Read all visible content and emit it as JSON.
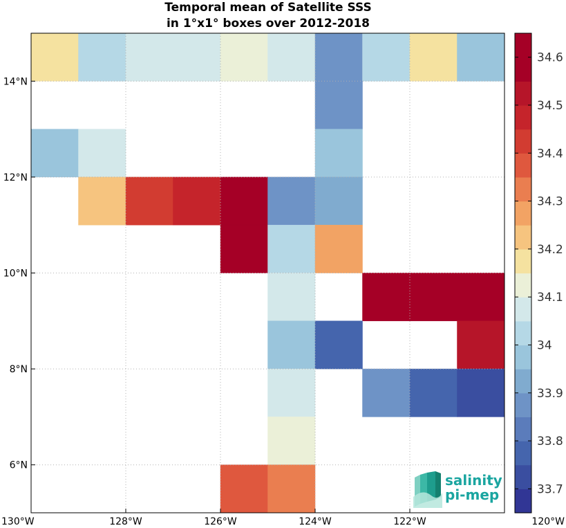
{
  "chart_data": {
    "type": "heatmap",
    "title_line1": "Temporal mean of Satellite SSS",
    "title_line2": "in 1°x1° boxes over 2012-2018",
    "xlim": [
      -130,
      -120
    ],
    "ylim": [
      5,
      15
    ],
    "x_ticks": [
      {
        "value": -130,
        "label": "130°W"
      },
      {
        "value": -128,
        "label": "128°W"
      },
      {
        "value": -126,
        "label": "126°W"
      },
      {
        "value": -124,
        "label": "124°W"
      },
      {
        "value": -122,
        "label": "122°W"
      },
      {
        "value": -120,
        "label": "120°W"
      }
    ],
    "y_ticks": [
      {
        "value": 6,
        "label": "6°N"
      },
      {
        "value": 8,
        "label": "8°N"
      },
      {
        "value": 10,
        "label": "10°N"
      },
      {
        "value": 12,
        "label": "12°N"
      },
      {
        "value": 14,
        "label": "14°N"
      }
    ],
    "grid": true,
    "cells": [
      {
        "lon": -130,
        "lat": 14,
        "sss": 34.17
      },
      {
        "lon": -129,
        "lat": 14,
        "sss": 34.0
      },
      {
        "lon": -128,
        "lat": 14,
        "sss": 34.07
      },
      {
        "lon": -127,
        "lat": 14,
        "sss": 34.07
      },
      {
        "lon": -126,
        "lat": 14,
        "sss": 34.12
      },
      {
        "lon": -125,
        "lat": 14,
        "sss": 34.07
      },
      {
        "lon": -124,
        "lat": 14,
        "sss": 33.87
      },
      {
        "lon": -123,
        "lat": 14,
        "sss": 34.02
      },
      {
        "lon": -122,
        "lat": 14,
        "sss": 34.17
      },
      {
        "lon": -121,
        "lat": 14,
        "sss": 33.97
      },
      {
        "lon": -124,
        "lat": 13,
        "sss": 33.87
      },
      {
        "lon": -130,
        "lat": 12,
        "sss": 33.97
      },
      {
        "lon": -129,
        "lat": 12,
        "sss": 34.07
      },
      {
        "lon": -124,
        "lat": 12,
        "sss": 33.97
      },
      {
        "lon": -129,
        "lat": 11,
        "sss": 34.22
      },
      {
        "lon": -128,
        "lat": 11,
        "sss": 34.42
      },
      {
        "lon": -127,
        "lat": 11,
        "sss": 34.47
      },
      {
        "lon": -126,
        "lat": 11,
        "sss": 34.62
      },
      {
        "lon": -125,
        "lat": 11,
        "sss": 33.85
      },
      {
        "lon": -124,
        "lat": 11,
        "sss": 33.92
      },
      {
        "lon": -126,
        "lat": 10,
        "sss": 34.62
      },
      {
        "lon": -125,
        "lat": 10,
        "sss": 34.02
      },
      {
        "lon": -124,
        "lat": 10,
        "sss": 34.27
      },
      {
        "lon": -125,
        "lat": 9,
        "sss": 34.07
      },
      {
        "lon": -123,
        "lat": 9,
        "sss": 34.57
      },
      {
        "lon": -122,
        "lat": 9,
        "sss": 34.57
      },
      {
        "lon": -121,
        "lat": 9,
        "sss": 34.57
      },
      {
        "lon": -125,
        "lat": 8,
        "sss": 33.97
      },
      {
        "lon": -124,
        "lat": 8,
        "sss": 33.77
      },
      {
        "lon": -121,
        "lat": 8,
        "sss": 34.52
      },
      {
        "lon": -125,
        "lat": 7,
        "sss": 34.07
      },
      {
        "lon": -123,
        "lat": 7,
        "sss": 33.87
      },
      {
        "lon": -122,
        "lat": 7,
        "sss": 33.77
      },
      {
        "lon": -121,
        "lat": 7,
        "sss": 33.72
      },
      {
        "lon": -125,
        "lat": 6,
        "sss": 34.12
      },
      {
        "lon": -126,
        "lat": 5,
        "sss": 34.37
      },
      {
        "lon": -125,
        "lat": 5,
        "sss": 34.32
      }
    ],
    "colorbar": {
      "vmin": 33.65,
      "vmax": 34.65,
      "levels": 20,
      "ticks": [
        33.7,
        33.8,
        33.9,
        34,
        34.1,
        34.2,
        34.3,
        34.4,
        34.5,
        34.6
      ],
      "tick_labels": [
        "33.7",
        "33.8",
        "33.9",
        "34",
        "34.1",
        "34.2",
        "34.3",
        "34.4",
        "34.5",
        "34.6"
      ],
      "colors": [
        "#313695",
        "#3a4ea0",
        "#4565ad",
        "#5b7cbb",
        "#6e93c6",
        "#80abcf",
        "#9ac5dc",
        "#b5d8e6",
        "#d3e8ea",
        "#ebf0d8",
        "#f5e2a0",
        "#f6c47f",
        "#f2a364",
        "#ea7e50",
        "#df583e",
        "#d23c31",
        "#c5242b",
        "#b61529",
        "#a50026",
        "#a50026"
      ]
    },
    "logo": {
      "line1": "salinity",
      "line2": "pi-mep"
    }
  }
}
